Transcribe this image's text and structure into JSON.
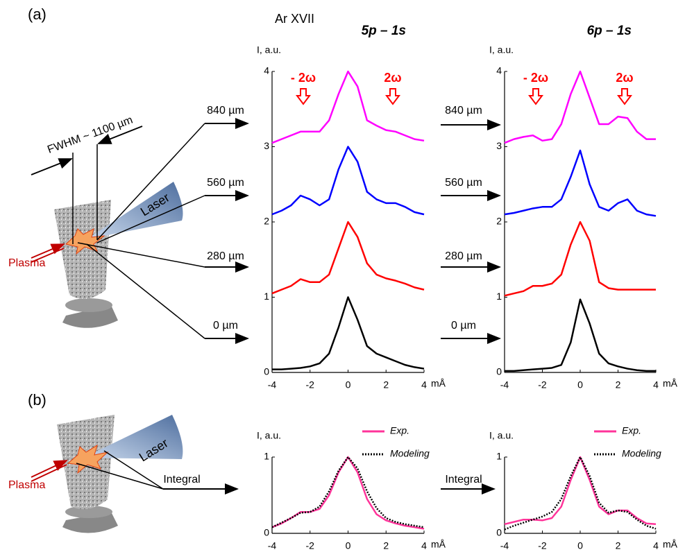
{
  "diagram": {
    "panel_a": "(a)",
    "panel_b": "(b)",
    "ion": "Ar XVII",
    "fwhm": "FWHM ~ 1100 µm",
    "laser": "Laser",
    "plasma": "Plasma",
    "integral_label": "Integral"
  },
  "chart_data": [
    {
      "type": "line",
      "title": "5p – 1s",
      "y_label": "I, a.u.",
      "x_label": "mÅ",
      "annotations": [
        "- 2ω",
        "2ω"
      ],
      "x": [
        -4,
        -3.5,
        -3,
        -2.5,
        -2,
        -1.5,
        -1,
        -0.5,
        0,
        0.5,
        1,
        1.5,
        2,
        2.5,
        3,
        3.5,
        4
      ],
      "xlim": [
        -4,
        4
      ],
      "xticks": [
        -4,
        -2,
        0,
        2,
        4
      ],
      "ylim": [
        0,
        4
      ],
      "yticks": [
        0,
        1,
        2,
        3,
        4
      ],
      "series": [
        {
          "name": "840 µm",
          "color": "#ff00ff",
          "values": [
            3.05,
            3.1,
            3.15,
            3.2,
            3.2,
            3.2,
            3.35,
            3.7,
            4.0,
            3.8,
            3.35,
            3.28,
            3.22,
            3.2,
            3.15,
            3.1,
            3.08
          ]
        },
        {
          "name": "560 µm",
          "color": "#0000ff",
          "values": [
            2.1,
            2.15,
            2.22,
            2.35,
            2.3,
            2.22,
            2.3,
            2.7,
            3.0,
            2.8,
            2.4,
            2.3,
            2.25,
            2.25,
            2.2,
            2.13,
            2.1
          ]
        },
        {
          "name": "280 µm",
          "color": "#ff0000",
          "values": [
            1.05,
            1.1,
            1.15,
            1.24,
            1.2,
            1.2,
            1.3,
            1.65,
            2.0,
            1.8,
            1.45,
            1.3,
            1.25,
            1.22,
            1.18,
            1.13,
            1.1
          ]
        },
        {
          "name": "0 µm",
          "color": "#000000",
          "values": [
            0.04,
            0.04,
            0.05,
            0.06,
            0.08,
            0.12,
            0.25,
            0.6,
            1.0,
            0.7,
            0.35,
            0.25,
            0.2,
            0.15,
            0.1,
            0.07,
            0.05
          ]
        }
      ]
    },
    {
      "type": "line",
      "title": "6p – 1s",
      "y_label": "I, a.u.",
      "x_label": "mÅ",
      "annotations": [
        "- 2ω",
        "2ω"
      ],
      "x": [
        -4,
        -3.5,
        -3,
        -2.5,
        -2,
        -1.5,
        -1,
        -0.5,
        0,
        0.5,
        1,
        1.5,
        2,
        2.5,
        3,
        3.5,
        4
      ],
      "xlim": [
        -4,
        4
      ],
      "xticks": [
        -4,
        -2,
        0,
        2,
        4
      ],
      "ylim": [
        0,
        4
      ],
      "yticks": [
        0,
        1,
        2,
        3,
        4
      ],
      "series": [
        {
          "name": "840 µm",
          "color": "#ff00ff",
          "values": [
            3.05,
            3.1,
            3.13,
            3.15,
            3.08,
            3.1,
            3.3,
            3.7,
            4.0,
            3.65,
            3.3,
            3.3,
            3.4,
            3.38,
            3.2,
            3.1,
            3.1
          ]
        },
        {
          "name": "560 µm",
          "color": "#0000ff",
          "values": [
            2.1,
            2.12,
            2.15,
            2.18,
            2.2,
            2.2,
            2.3,
            2.6,
            2.95,
            2.5,
            2.2,
            2.15,
            2.25,
            2.3,
            2.15,
            2.1,
            2.08
          ]
        },
        {
          "name": "280 µm",
          "color": "#ff0000",
          "values": [
            1.02,
            1.05,
            1.08,
            1.15,
            1.15,
            1.18,
            1.3,
            1.7,
            2.0,
            1.75,
            1.2,
            1.12,
            1.1,
            1.1,
            1.1,
            1.1,
            1.1
          ]
        },
        {
          "name": "0 µm",
          "color": "#000000",
          "values": [
            0.02,
            0.02,
            0.03,
            0.04,
            0.05,
            0.06,
            0.1,
            0.4,
            0.97,
            0.65,
            0.25,
            0.12,
            0.08,
            0.05,
            0.03,
            0.02,
            0.02
          ]
        }
      ]
    },
    {
      "type": "line",
      "y_label": "I, a.u.",
      "x_label": "mÅ",
      "x": [
        -4,
        -3.5,
        -3,
        -2.5,
        -2,
        -1.5,
        -1,
        -0.5,
        0,
        0.5,
        1,
        1.5,
        2,
        2.5,
        3,
        3.5,
        4
      ],
      "xlim": [
        -4,
        4
      ],
      "xticks": [
        -4,
        -2,
        0,
        2,
        4
      ],
      "ylim": [
        0,
        1
      ],
      "yticks": [
        0,
        1
      ],
      "series": [
        {
          "name": "Exp.",
          "color": "#ff3399",
          "line_style": "solid",
          "values": [
            0.08,
            0.13,
            0.2,
            0.28,
            0.28,
            0.32,
            0.5,
            0.8,
            1.0,
            0.8,
            0.45,
            0.25,
            0.17,
            0.13,
            0.1,
            0.08,
            0.06
          ]
        },
        {
          "name": "Modeling",
          "color": "#000000",
          "line_style": "dotted",
          "values": [
            0.08,
            0.14,
            0.2,
            0.27,
            0.28,
            0.35,
            0.55,
            0.82,
            1.0,
            0.85,
            0.55,
            0.33,
            0.2,
            0.15,
            0.12,
            0.1,
            0.08
          ]
        }
      ]
    },
    {
      "type": "line",
      "y_label": "I, a.u.",
      "x_label": "mÅ",
      "x": [
        -4,
        -3.5,
        -3,
        -2.5,
        -2,
        -1.5,
        -1,
        -0.5,
        0,
        0.5,
        1,
        1.5,
        2,
        2.5,
        3,
        3.5,
        4
      ],
      "xlim": [
        -4,
        4
      ],
      "xticks": [
        -4,
        -2,
        0,
        2,
        4
      ],
      "ylim": [
        0,
        1
      ],
      "yticks": [
        0,
        1
      ],
      "series": [
        {
          "name": "Exp.",
          "color": "#ff3399",
          "line_style": "solid",
          "values": [
            0.12,
            0.15,
            0.18,
            0.18,
            0.17,
            0.2,
            0.35,
            0.7,
            1.0,
            0.7,
            0.35,
            0.25,
            0.3,
            0.3,
            0.2,
            0.13,
            0.12
          ]
        },
        {
          "name": "Modeling",
          "color": "#000000",
          "line_style": "dotted",
          "values": [
            0.05,
            0.1,
            0.14,
            0.18,
            0.22,
            0.28,
            0.45,
            0.75,
            1.0,
            0.75,
            0.4,
            0.27,
            0.3,
            0.28,
            0.18,
            0.1,
            0.06
          ]
        }
      ]
    }
  ]
}
